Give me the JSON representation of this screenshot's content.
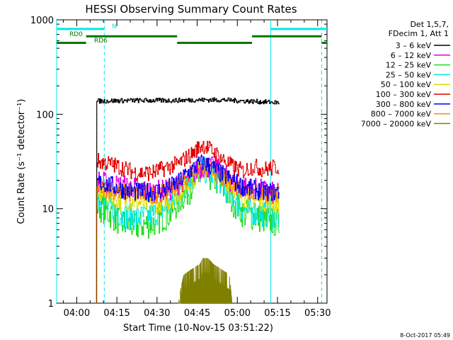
{
  "chart_data": {
    "type": "line",
    "title": "HESSI Observing Summary Count Rates",
    "xlabel": "Start Time (10-Nov-15 03:51:22)",
    "ylabel": "Count Rate (s⁻¹ detector⁻¹)",
    "y_scale": "log",
    "ylim": [
      1,
      1000
    ],
    "xlim_minutes": [
      -7.5,
      93.5
    ],
    "grid": false,
    "legend_position": "top-right",
    "x_ticks": [
      {
        "m": 0,
        "label": "04:00"
      },
      {
        "m": 15,
        "label": "04:15"
      },
      {
        "m": 30,
        "label": "04:30"
      },
      {
        "m": 45,
        "label": "04:45"
      },
      {
        "m": 60,
        "label": "05:00"
      },
      {
        "m": 75,
        "label": "05:15"
      },
      {
        "m": 90,
        "label": "05:30"
      }
    ],
    "y_ticks": [
      {
        "v": 1,
        "label": "1"
      },
      {
        "v": 10,
        "label": "10"
      },
      {
        "v": 100,
        "label": "100"
      },
      {
        "v": 1000,
        "label": "1000"
      }
    ],
    "legend_header": [
      "Det 1,5,7,",
      "FDecim 1, Att 1"
    ],
    "series": [
      {
        "name": "3 – 6 keV",
        "color": "#000000",
        "x": [
          7.5,
          8,
          20,
          35,
          45,
          55,
          65,
          75.5
        ],
        "y": [
          135,
          138,
          140,
          140,
          142,
          142,
          137,
          133
        ]
      },
      {
        "name": "6 – 12 keV",
        "color": "#e000e0",
        "x": [
          7.5,
          12,
          20,
          28,
          35,
          42,
          47,
          52,
          57,
          62,
          68,
          75.5
        ],
        "y": [
          20,
          18,
          17,
          15,
          16,
          22,
          28,
          27,
          20,
          17,
          16,
          14
        ]
      },
      {
        "name": "12 – 25 keV",
        "color": "#22dd22",
        "x": [
          7.5,
          12,
          17,
          22,
          28,
          35,
          42,
          47,
          52,
          57,
          62,
          68,
          75.5
        ],
        "y": [
          11,
          9,
          7,
          6.5,
          7,
          9,
          16,
          24,
          20,
          13,
          9,
          8,
          7
        ]
      },
      {
        "name": "25 – 50 keV",
        "color": "#00e8e8",
        "x": [
          7.5,
          12,
          17,
          22,
          28,
          35,
          42,
          47,
          52,
          57,
          62,
          68,
          75.5
        ],
        "y": [
          13,
          10,
          8.5,
          8,
          8.5,
          11,
          19,
          26,
          22,
          14,
          10,
          9,
          8
        ]
      },
      {
        "name": "50 – 100 keV",
        "color": "#dddd00",
        "x": [
          7.5,
          12,
          20,
          28,
          35,
          42,
          47,
          52,
          57,
          62,
          68,
          75.5
        ],
        "y": [
          15,
          13,
          12,
          11,
          12,
          18,
          26,
          25,
          18,
          13,
          12,
          11
        ]
      },
      {
        "name": "100 – 300 keV",
        "color": "#e00000",
        "x": [
          7.5,
          12,
          17,
          22,
          28,
          33,
          38,
          43,
          47,
          50,
          54,
          58,
          62,
          66,
          70,
          75.5
        ],
        "y": [
          32,
          30,
          27,
          24,
          24,
          27,
          30,
          38,
          48,
          42,
          34,
          28,
          25,
          28,
          26,
          28
        ]
      },
      {
        "name": "300 – 800 keV",
        "color": "#0000ff",
        "x": [
          7.5,
          12,
          17,
          22,
          28,
          33,
          38,
          43,
          47,
          50,
          54,
          58,
          62,
          66,
          70,
          75.5
        ],
        "y": [
          19,
          18,
          16,
          15,
          15,
          16,
          19,
          26,
          31,
          28,
          23,
          20,
          17,
          16,
          15,
          15
        ]
      },
      {
        "name": "800 – 7000 keV",
        "color": "#ff8800",
        "x": [
          7.5,
          12,
          17,
          22,
          28,
          33,
          38,
          43,
          47,
          50,
          54,
          58,
          62,
          66,
          70,
          75.5
        ],
        "y": [
          17,
          16,
          15,
          14,
          14,
          15,
          18,
          24,
          29,
          26,
          21,
          18,
          16,
          15,
          14,
          14
        ]
      },
      {
        "name": "7000 – 20000 keV",
        "color": "#808000",
        "x": [
          38,
          40,
          42,
          44,
          46,
          47,
          49,
          51,
          53,
          55,
          57,
          58
        ],
        "y": [
          1,
          2,
          2.2,
          2.4,
          2.6,
          3,
          3,
          2.6,
          2.4,
          2.2,
          2,
          1
        ]
      }
    ],
    "annotations": {
      "state_bars": [
        {
          "label": "N",
          "color": "#00e8e8",
          "segments": [
            [
              -7.5,
              10.3
            ],
            [
              72.5,
              93.5
            ]
          ],
          "level": 800
        },
        {
          "label": "RD0",
          "color": "#007700",
          "segments": [
            [
              3.5,
              37.5
            ],
            [
              65.5,
              91.5
            ]
          ],
          "level": 670
        },
        {
          "label": "RD6",
          "color": "#007700",
          "segments": [
            [
              -7.5,
              3.5
            ],
            [
              37.5,
              65.5
            ],
            [
              91.5,
              93.5
            ]
          ],
          "level": 570
        }
      ],
      "vlines_solid_min": [
        -7.5,
        72.5
      ],
      "vlines_dashed_min": [
        10.3,
        91.5
      ]
    },
    "footer": "8-Oct-2017 05:49"
  }
}
